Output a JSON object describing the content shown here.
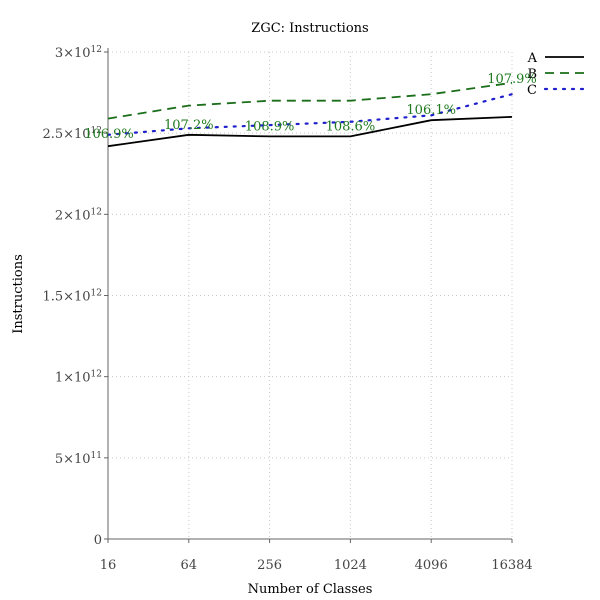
{
  "chart_data": {
    "type": "line",
    "title": "ZGC: Instructions",
    "xlabel": "Number of Classes",
    "ylabel": "Instructions",
    "x_scale": "log2",
    "categories": [
      "16",
      "64",
      "256",
      "1024",
      "4096",
      "16384"
    ],
    "x": [
      16,
      64,
      256,
      1024,
      4096,
      16384
    ],
    "ylim": [
      0,
      3000000000000.0
    ],
    "yticks": [
      {
        "value": 0,
        "mantissa": "0",
        "exponent": ""
      },
      {
        "value": 500000000000.0,
        "mantissa": "5×10",
        "exponent": "11"
      },
      {
        "value": 1000000000000.0,
        "mantissa": "1×10",
        "exponent": "12"
      },
      {
        "value": 1500000000000.0,
        "mantissa": "1.5×10",
        "exponent": "12"
      },
      {
        "value": 2000000000000.0,
        "mantissa": "2×10",
        "exponent": "12"
      },
      {
        "value": 2500000000000.0,
        "mantissa": "2.5×10",
        "exponent": "12"
      },
      {
        "value": 3000000000000.0,
        "mantissa": "3×10",
        "exponent": "12"
      }
    ],
    "grid": true,
    "legend_position": "top-right",
    "series": [
      {
        "name": "A",
        "color": "#000000",
        "style": "solid",
        "values": [
          2420000000000.0,
          2490000000000.0,
          2480000000000.0,
          2480000000000.0,
          2580000000000.0,
          2600000000000.0
        ]
      },
      {
        "name": "B",
        "color": "#1a6e1a",
        "style": "dashed",
        "values": [
          2590000000000.0,
          2670000000000.0,
          2700000000000.0,
          2700000000000.0,
          2740000000000.0,
          2810000000000.0
        ]
      },
      {
        "name": "C",
        "color": "#1f1fcc",
        "style": "dotted",
        "values": [
          2490000000000.0,
          2530000000000.0,
          2550000000000.0,
          2570000000000.0,
          2610000000000.0,
          2740000000000.0
        ]
      }
    ],
    "annotations": [
      "106.9%",
      "107.2%",
      "108.9%",
      "108.6%",
      "106.1%",
      "107.9%"
    ],
    "annotation_color": "#1f7a1f"
  }
}
